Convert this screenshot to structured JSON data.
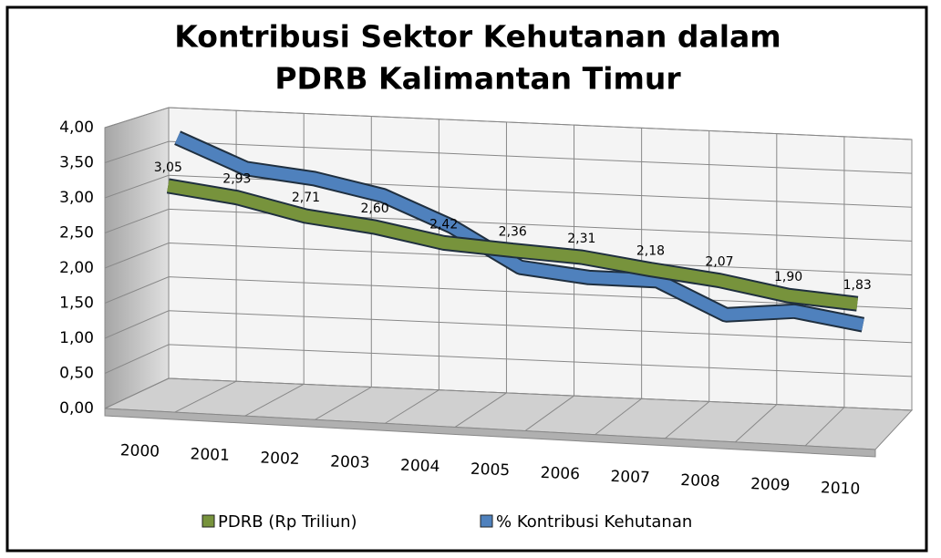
{
  "chart_data": {
    "type": "line",
    "title": "Kontribusi Sektor Kehutanan dalam PDRB Kalimantan Timur",
    "categories": [
      "2000",
      "2001",
      "2002",
      "2003",
      "2004",
      "2005",
      "2006",
      "2007",
      "2008",
      "2009",
      "2010"
    ],
    "series": [
      {
        "name": "PDRB (Rp Triliun)",
        "color": "#77933c",
        "values": [
          3.05,
          2.93,
          2.71,
          2.6,
          2.42,
          2.36,
          2.31,
          2.18,
          2.07,
          1.9,
          1.83
        ],
        "value_labels": [
          "3,05",
          "2,93",
          "2,71",
          "2,60",
          "2,42",
          "2,36",
          "2,31",
          "2,18",
          "2,07",
          "1,90",
          "1,83"
        ]
      },
      {
        "name": "% Kontribusi Kehutanan",
        "color": "#4f81bd",
        "values": [
          3.7,
          3.3,
          3.2,
          3.0,
          2.6,
          2.05,
          1.95,
          1.95,
          1.5,
          1.6,
          1.45
        ]
      }
    ],
    "ylim": [
      0,
      4
    ],
    "yticks": [
      {
        "value": 0,
        "label": "0,00"
      },
      {
        "value": 0.5,
        "label": "0,50"
      },
      {
        "value": 1,
        "label": "1,00"
      },
      {
        "value": 1.5,
        "label": "1,50"
      },
      {
        "value": 2,
        "label": "2,00"
      },
      {
        "value": 2.5,
        "label": "2,50"
      },
      {
        "value": 3,
        "label": "3,00"
      },
      {
        "value": 3.5,
        "label": "3,50"
      },
      {
        "value": 4,
        "label": "4,00"
      }
    ],
    "grid": true,
    "legend": "bottom"
  }
}
